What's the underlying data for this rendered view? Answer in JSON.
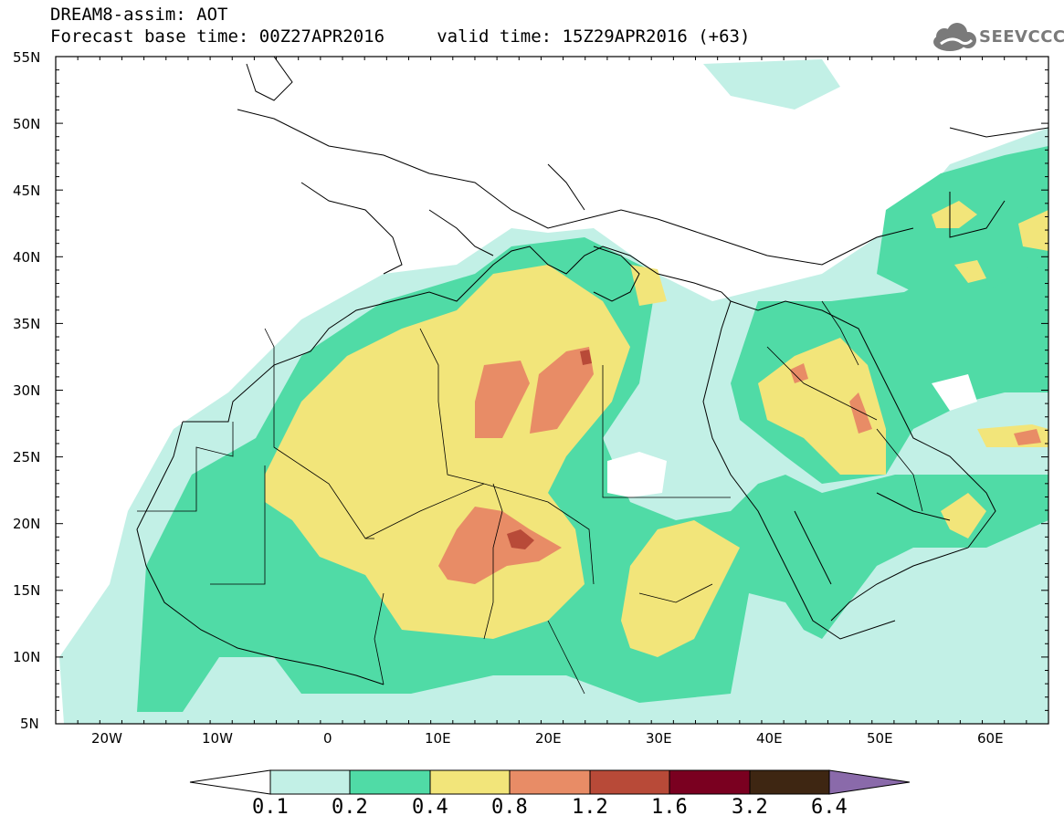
{
  "header": {
    "title_line1": "DREAM8-assim: AOT",
    "title_line2": "Forecast base time: 00Z27APR2016     valid time: 15Z29APR2016 (+63)",
    "logo_text": "SEEVCCC",
    "logo_icon": "cloud-icon"
  },
  "map": {
    "latitude_labels": [
      "55N",
      "50N",
      "45N",
      "40N",
      "35N",
      "30N",
      "25N",
      "20N",
      "15N",
      "10N",
      "5N"
    ],
    "longitude_labels": [
      "20W",
      "10W",
      "0",
      "10E",
      "20E",
      "30E",
      "40E",
      "50E",
      "60E"
    ],
    "lon_range": [
      -25,
      65
    ],
    "lat_range": [
      5,
      55
    ]
  },
  "colorbar": {
    "labels": [
      "0.1",
      "0.2",
      "0.4",
      "0.8",
      "1.2",
      "1.6",
      "3.2",
      "6.4"
    ],
    "colors": [
      "#ffffff",
      "#c2f0e6",
      "#50dba6",
      "#f2e57a",
      "#e88c66",
      "#b84a38",
      "#7a0020",
      "#3e2612",
      "#8a6aaa"
    ]
  }
}
